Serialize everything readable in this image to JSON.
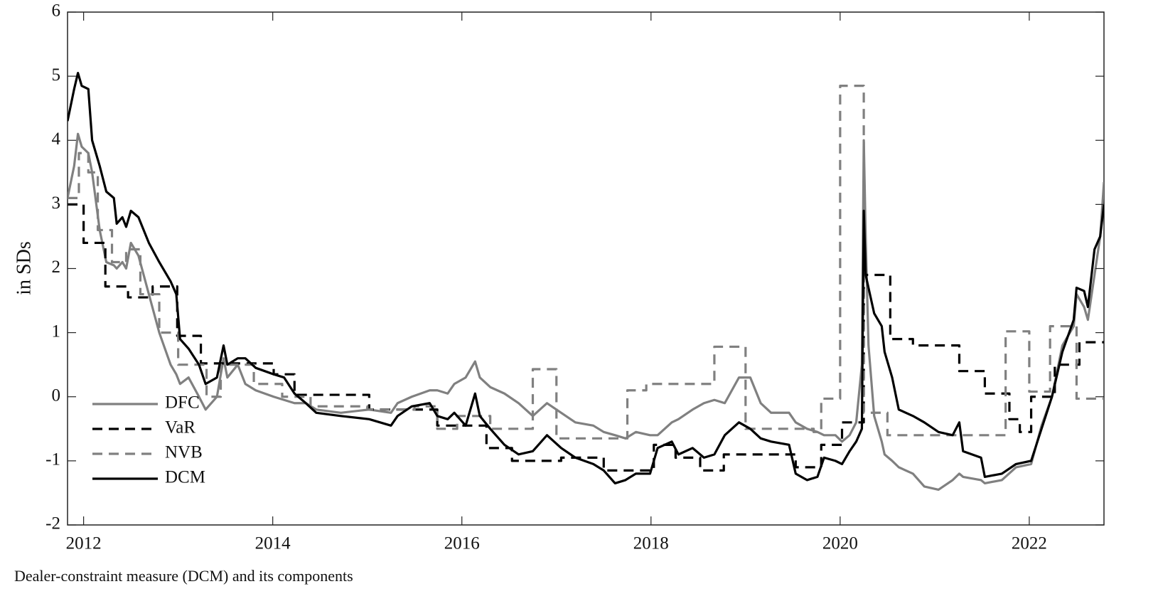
{
  "chart_data": {
    "type": "line",
    "y_label": "in SDs",
    "caption": "Dealer-constraint measure (DCM) and its components",
    "xlim": [
      2011.83,
      2022.79
    ],
    "xticks": [
      2012,
      2014,
      2016,
      2018,
      2020,
      2022
    ],
    "ylim": [
      -2,
      6
    ],
    "yticks": [
      -2,
      -1,
      0,
      1,
      2,
      3,
      4,
      5,
      6
    ],
    "grid": false,
    "legend": "lower left",
    "series": [
      {
        "name": "DFC",
        "color": "#808080",
        "dash": false,
        "step": false,
        "x": [
          2011.83,
          2011.9,
          2011.94,
          2011.98,
          2012.05,
          2012.09,
          2012.17,
          2012.24,
          2012.32,
          2012.35,
          2012.41,
          2012.45,
          2012.5,
          2012.58,
          2012.69,
          2012.8,
          2012.92,
          2012.98,
          2013.02,
          2013.11,
          2013.22,
          2013.29,
          2013.41,
          2013.48,
          2013.52,
          2013.63,
          2013.71,
          2013.82,
          2014.01,
          2014.12,
          2014.23,
          2014.35,
          2014.46,
          2014.72,
          2015.02,
          2015.25,
          2015.32,
          2015.47,
          2015.66,
          2015.74,
          2015.85,
          2015.92,
          2016.04,
          2016.14,
          2016.19,
          2016.3,
          2016.45,
          2016.6,
          2016.75,
          2016.9,
          2017.05,
          2017.2,
          2017.39,
          2017.5,
          2017.62,
          2017.73,
          2017.84,
          2017.99,
          2018.07,
          2018.22,
          2018.29,
          2018.44,
          2018.56,
          2018.67,
          2018.78,
          2018.93,
          2019.05,
          2019.16,
          2019.27,
          2019.46,
          2019.53,
          2019.65,
          2019.76,
          2019.83,
          2019.95,
          2020.02,
          2020.1,
          2020.17,
          2020.23,
          2020.25,
          2020.27,
          2020.3,
          2020.36,
          2020.44,
          2020.47,
          2020.55,
          2020.62,
          2020.77,
          2020.89,
          2021.04,
          2021.19,
          2021.26,
          2021.3,
          2021.49,
          2021.53,
          2021.71,
          2021.86,
          2022.02,
          2022.13,
          2022.24,
          2022.35,
          2022.47,
          2022.5,
          2022.58,
          2022.62,
          2022.69,
          2022.75,
          2022.79
        ],
        "values": [
          3.1,
          3.6,
          4.1,
          3.9,
          3.8,
          3.5,
          2.6,
          2.1,
          2.05,
          2.0,
          2.1,
          2.0,
          2.4,
          2.2,
          1.6,
          1.0,
          0.5,
          0.35,
          0.2,
          0.3,
          0.0,
          -0.2,
          0.0,
          0.6,
          0.3,
          0.5,
          0.2,
          0.1,
          0.0,
          -0.05,
          -0.1,
          -0.1,
          -0.2,
          -0.25,
          -0.2,
          -0.25,
          -0.1,
          0.0,
          0.1,
          0.1,
          0.05,
          0.2,
          0.3,
          0.55,
          0.3,
          0.15,
          0.05,
          -0.1,
          -0.3,
          -0.1,
          -0.25,
          -0.4,
          -0.45,
          -0.55,
          -0.6,
          -0.65,
          -0.55,
          -0.6,
          -0.6,
          -0.4,
          -0.35,
          -0.2,
          -0.1,
          -0.05,
          -0.1,
          0.3,
          0.3,
          -0.1,
          -0.25,
          -0.25,
          -0.4,
          -0.5,
          -0.55,
          -0.6,
          -0.6,
          -0.7,
          -0.6,
          -0.4,
          0.5,
          4.0,
          2.5,
          0.8,
          -0.3,
          -0.7,
          -0.9,
          -1.0,
          -1.1,
          -1.2,
          -1.4,
          -1.45,
          -1.3,
          -1.2,
          -1.25,
          -1.3,
          -1.35,
          -1.3,
          -1.1,
          -1.05,
          -0.45,
          0.0,
          0.8,
          1.1,
          1.6,
          1.4,
          1.2,
          1.9,
          2.5,
          3.35
        ]
      },
      {
        "name": "VaR",
        "color": "#000000",
        "dash": true,
        "step": true,
        "x": [
          2011.83,
          2012.0,
          2012.23,
          2012.47,
          2012.73,
          2012.99,
          2013.24,
          2014.01,
          2014.23,
          2015.02,
          2015.74,
          2016.26,
          2016.53,
          2017.05,
          2017.5,
          2018.03,
          2018.26,
          2018.52,
          2018.77,
          2019.53,
          2019.8,
          2020.02,
          2020.25,
          2020.53,
          2020.77,
          2021.26,
          2021.53,
          2021.79,
          2021.9,
          2022.02,
          2022.27,
          2022.53
        ],
        "values": [
          3.0,
          2.4,
          1.72,
          1.55,
          1.72,
          0.95,
          0.52,
          0.35,
          0.03,
          -0.2,
          -0.45,
          -0.8,
          -1.0,
          -0.95,
          -1.15,
          -0.75,
          -0.95,
          -1.15,
          -0.9,
          -1.1,
          -0.75,
          -0.4,
          1.9,
          0.9,
          0.8,
          0.4,
          0.05,
          -0.35,
          -0.55,
          0.0,
          0.5,
          0.85
        ]
      },
      {
        "name": "NVB",
        "color": "#808080",
        "dash": true,
        "step": true,
        "x": [
          2011.83,
          2011.95,
          2012.05,
          2012.15,
          2012.3,
          2012.45,
          2012.6,
          2012.8,
          2013.0,
          2013.3,
          2013.45,
          2013.8,
          2014.1,
          2014.4,
          2015.0,
          2015.5,
          2015.74,
          2015.95,
          2016.3,
          2016.75,
          2017.0,
          2017.75,
          2017.95,
          2018.67,
          2019.0,
          2019.72,
          2019.8,
          2020.0,
          2020.25,
          2020.5,
          2021.75,
          2022.0,
          2022.22,
          2022.5
        ],
        "values": [
          3.1,
          3.8,
          3.5,
          2.6,
          2.1,
          2.3,
          1.6,
          1.0,
          0.5,
          0.0,
          0.5,
          0.2,
          0.0,
          -0.15,
          -0.2,
          -0.15,
          -0.5,
          -0.3,
          -0.5,
          0.43,
          -0.65,
          0.1,
          0.2,
          0.78,
          -0.5,
          -0.55,
          -0.03,
          4.85,
          -0.25,
          -0.6,
          1.02,
          0.08,
          1.1,
          -0.03
        ]
      },
      {
        "name": "DCM",
        "color": "#000000",
        "dash": false,
        "step": false,
        "x": [
          2011.83,
          2011.9,
          2011.94,
          2011.98,
          2012.05,
          2012.09,
          2012.17,
          2012.24,
          2012.32,
          2012.35,
          2012.41,
          2012.45,
          2012.5,
          2012.58,
          2012.69,
          2012.8,
          2012.92,
          2012.98,
          2013.02,
          2013.11,
          2013.22,
          2013.29,
          2013.41,
          2013.48,
          2013.52,
          2013.63,
          2013.71,
          2013.82,
          2014.01,
          2014.12,
          2014.23,
          2014.35,
          2014.46,
          2014.72,
          2015.02,
          2015.25,
          2015.32,
          2015.47,
          2015.66,
          2015.74,
          2015.85,
          2015.92,
          2016.04,
          2016.14,
          2016.19,
          2016.3,
          2016.45,
          2016.6,
          2016.75,
          2016.9,
          2017.05,
          2017.2,
          2017.39,
          2017.5,
          2017.62,
          2017.73,
          2017.84,
          2017.99,
          2018.07,
          2018.22,
          2018.29,
          2018.44,
          2018.56,
          2018.67,
          2018.78,
          2018.93,
          2019.05,
          2019.16,
          2019.27,
          2019.46,
          2019.53,
          2019.65,
          2019.76,
          2019.83,
          2019.95,
          2020.02,
          2020.1,
          2020.17,
          2020.23,
          2020.25,
          2020.27,
          2020.3,
          2020.36,
          2020.44,
          2020.47,
          2020.55,
          2020.62,
          2020.77,
          2020.89,
          2021.04,
          2021.19,
          2021.26,
          2021.3,
          2021.49,
          2021.53,
          2021.71,
          2021.86,
          2022.02,
          2022.13,
          2022.24,
          2022.35,
          2022.47,
          2022.5,
          2022.58,
          2022.62,
          2022.69,
          2022.75,
          2022.79
        ],
        "values": [
          4.3,
          4.8,
          5.05,
          4.85,
          4.8,
          4.0,
          3.6,
          3.2,
          3.1,
          2.7,
          2.8,
          2.65,
          2.9,
          2.8,
          2.4,
          2.1,
          1.8,
          1.6,
          0.9,
          0.75,
          0.5,
          0.2,
          0.3,
          0.8,
          0.5,
          0.6,
          0.6,
          0.45,
          0.35,
          0.3,
          0.05,
          -0.1,
          -0.25,
          -0.3,
          -0.35,
          -0.45,
          -0.3,
          -0.15,
          -0.1,
          -0.3,
          -0.35,
          -0.25,
          -0.45,
          0.05,
          -0.3,
          -0.5,
          -0.75,
          -0.9,
          -0.85,
          -0.6,
          -0.8,
          -0.95,
          -1.05,
          -1.15,
          -1.35,
          -1.3,
          -1.2,
          -1.2,
          -0.8,
          -0.7,
          -0.9,
          -0.8,
          -0.95,
          -0.9,
          -0.6,
          -0.4,
          -0.5,
          -0.65,
          -0.7,
          -0.75,
          -1.2,
          -1.3,
          -1.25,
          -0.95,
          -1.0,
          -1.05,
          -0.85,
          -0.7,
          -0.5,
          2.9,
          1.9,
          1.7,
          1.3,
          1.1,
          0.7,
          0.3,
          -0.2,
          -0.3,
          -0.4,
          -0.55,
          -0.6,
          -0.4,
          -0.85,
          -0.95,
          -1.25,
          -1.2,
          -1.05,
          -1.0,
          -0.5,
          0.0,
          0.7,
          1.2,
          1.7,
          1.65,
          1.4,
          2.3,
          2.5,
          3.0
        ]
      }
    ]
  }
}
